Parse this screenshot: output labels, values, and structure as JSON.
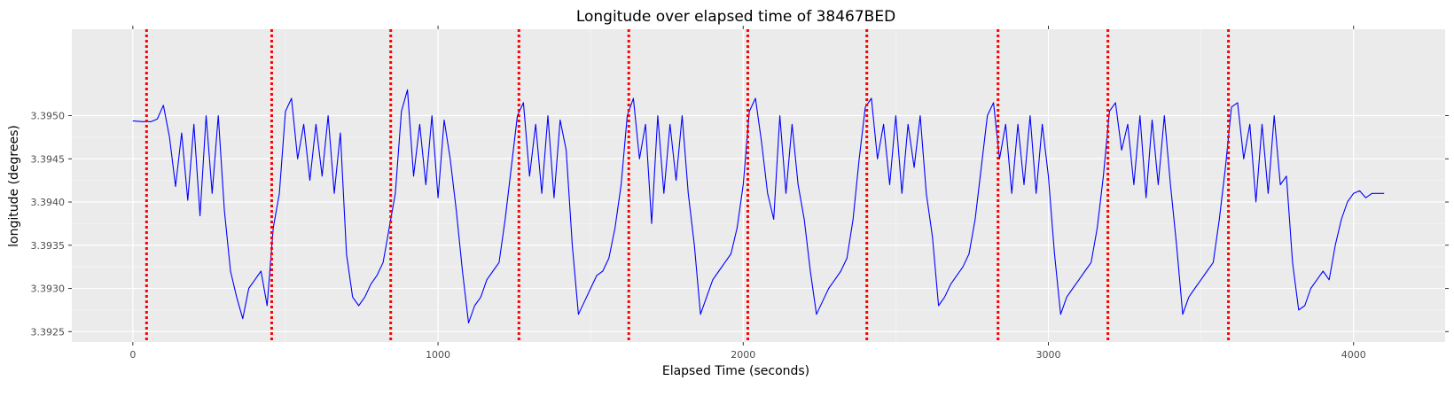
{
  "chart_data": {
    "type": "line",
    "title": "Longitude over elapsed time of 38467BED",
    "xlabel": "Elapsed Time (seconds)",
    "ylabel": "longitude (degrees)",
    "xlim": [
      -200,
      4300
    ],
    "ylim": [
      3.39238,
      3.396
    ],
    "xticks": [
      0,
      1000,
      2000,
      3000,
      4000
    ],
    "yticks": [
      3.3925,
      3.393,
      3.3935,
      3.394,
      3.3945,
      3.395
    ],
    "ytick_labels": [
      "3.3925",
      "3.3930",
      "3.3935",
      "3.3940",
      "3.3945",
      "3.3950"
    ],
    "grid": true,
    "background": "#ebebeb",
    "series": [
      {
        "color": "#0000ff",
        "x": [
          0,
          30,
          60,
          80,
          100,
          120,
          140,
          160,
          180,
          200,
          220,
          240,
          260,
          280,
          300,
          320,
          340,
          360,
          380,
          400,
          420,
          440,
          460,
          480,
          500,
          520,
          540,
          560,
          580,
          600,
          620,
          640,
          660,
          680,
          700,
          720,
          740,
          760,
          780,
          800,
          820,
          840,
          860,
          880,
          900,
          920,
          940,
          960,
          980,
          1000,
          1020,
          1040,
          1060,
          1080,
          1100,
          1120,
          1140,
          1160,
          1180,
          1200,
          1220,
          1240,
          1260,
          1280,
          1300,
          1320,
          1340,
          1360,
          1380,
          1400,
          1420,
          1440,
          1460,
          1480,
          1500,
          1520,
          1540,
          1560,
          1580,
          1600,
          1620,
          1640,
          1660,
          1680,
          1700,
          1720,
          1740,
          1760,
          1780,
          1800,
          1820,
          1840,
          1860,
          1880,
          1900,
          1920,
          1940,
          1960,
          1980,
          2000,
          2020,
          2040,
          2060,
          2080,
          2100,
          2120,
          2140,
          2160,
          2180,
          2200,
          2220,
          2240,
          2260,
          2280,
          2300,
          2320,
          2340,
          2360,
          2380,
          2400,
          2420,
          2440,
          2460,
          2480,
          2500,
          2520,
          2540,
          2560,
          2580,
          2600,
          2620,
          2640,
          2660,
          2680,
          2700,
          2720,
          2740,
          2760,
          2780,
          2800,
          2820,
          2840,
          2860,
          2880,
          2900,
          2920,
          2940,
          2960,
          2980,
          3000,
          3020,
          3040,
          3060,
          3080,
          3100,
          3120,
          3140,
          3160,
          3180,
          3200,
          3220,
          3240,
          3260,
          3280,
          3300,
          3320,
          3340,
          3360,
          3380,
          3400,
          3420,
          3440,
          3460,
          3480,
          3500,
          3520,
          3540,
          3560,
          3580,
          3600,
          3620,
          3640,
          3660,
          3680,
          3700,
          3720,
          3740,
          3760,
          3780,
          3800,
          3820,
          3840,
          3860,
          3880,
          3900,
          3920,
          3940,
          3960,
          3980,
          4000,
          4020,
          4040,
          4060,
          4080,
          4100
        ],
        "y": [
          3.39494,
          3.39493,
          3.39493,
          3.39496,
          3.39512,
          3.39475,
          3.39418,
          3.3948,
          3.39402,
          3.3949,
          3.39384,
          3.395,
          3.3941,
          3.395,
          3.3939,
          3.3932,
          3.3929,
          3.39265,
          3.393,
          3.3931,
          3.3932,
          3.3928,
          3.3937,
          3.3941,
          3.39505,
          3.3952,
          3.3945,
          3.3949,
          3.39425,
          3.3949,
          3.3943,
          3.395,
          3.3941,
          3.3948,
          3.3934,
          3.3929,
          3.3928,
          3.3929,
          3.39305,
          3.39315,
          3.3933,
          3.3937,
          3.3941,
          3.39505,
          3.3953,
          3.3943,
          3.3949,
          3.3942,
          3.395,
          3.39405,
          3.39495,
          3.3945,
          3.3939,
          3.3932,
          3.3926,
          3.3928,
          3.3929,
          3.3931,
          3.3932,
          3.3933,
          3.3938,
          3.3944,
          3.395,
          3.39515,
          3.3943,
          3.3949,
          3.3941,
          3.395,
          3.39405,
          3.39495,
          3.3946,
          3.3935,
          3.3927,
          3.39285,
          3.393,
          3.39315,
          3.3932,
          3.39335,
          3.3937,
          3.3942,
          3.395,
          3.3952,
          3.3945,
          3.3949,
          3.39375,
          3.395,
          3.3941,
          3.3949,
          3.39425,
          3.395,
          3.3941,
          3.3935,
          3.3927,
          3.3929,
          3.3931,
          3.3932,
          3.3933,
          3.3934,
          3.3937,
          3.3942,
          3.39505,
          3.3952,
          3.3947,
          3.3941,
          3.3938,
          3.395,
          3.3941,
          3.3949,
          3.3942,
          3.3938,
          3.3932,
          3.3927,
          3.39285,
          3.393,
          3.3931,
          3.3932,
          3.39335,
          3.3938,
          3.3945,
          3.3951,
          3.3952,
          3.3945,
          3.3949,
          3.3942,
          3.395,
          3.3941,
          3.3949,
          3.3944,
          3.395,
          3.3941,
          3.3936,
          3.3928,
          3.3929,
          3.39305,
          3.39315,
          3.39325,
          3.3934,
          3.3938,
          3.3944,
          3.395,
          3.39515,
          3.3945,
          3.3949,
          3.3941,
          3.3949,
          3.3942,
          3.395,
          3.3941,
          3.3949,
          3.3943,
          3.3934,
          3.3927,
          3.3929,
          3.393,
          3.3931,
          3.3932,
          3.3933,
          3.3937,
          3.3943,
          3.39505,
          3.39515,
          3.3946,
          3.3949,
          3.3942,
          3.395,
          3.39405,
          3.39495,
          3.3942,
          3.395,
          3.3942,
          3.3935,
          3.3927,
          3.3929,
          3.393,
          3.3931,
          3.3932,
          3.3933,
          3.3938,
          3.3944,
          3.3951,
          3.39515,
          3.3945,
          3.3949,
          3.394,
          3.3949,
          3.3941,
          3.395,
          3.3942,
          3.3943,
          3.3933,
          3.39275,
          3.3928,
          3.393,
          3.3931,
          3.3932,
          3.3931,
          3.3935,
          3.3938,
          3.394,
          3.3941,
          3.39413,
          3.39405,
          3.3941,
          3.3941,
          3.3941
        ]
      }
    ],
    "vlines": {
      "color": "#ff0000",
      "style": "dotted",
      "x": [
        45,
        455,
        845,
        1265,
        1625,
        2015,
        2405,
        2835,
        3195,
        3590
      ]
    }
  }
}
